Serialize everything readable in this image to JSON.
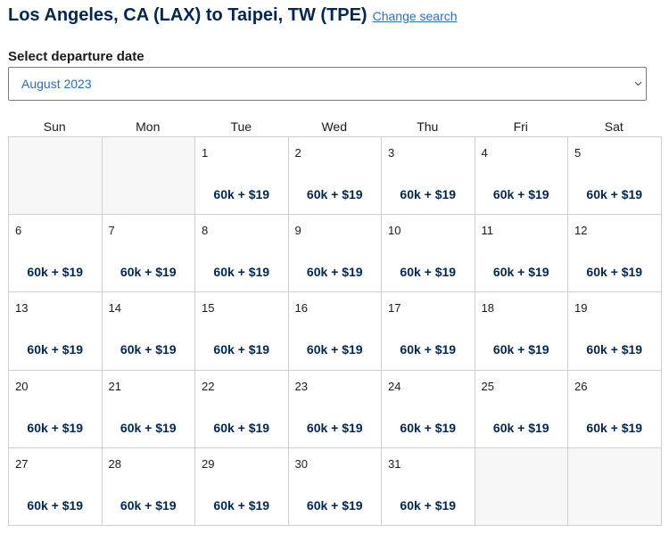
{
  "header": {
    "title": "Los Angeles, CA (LAX) to Taipei, TW (TPE)",
    "change_link": "Change search"
  },
  "date_select": {
    "label": "Select departure date",
    "value": "August 2023",
    "icon": "chevron-down-icon"
  },
  "calendar": {
    "weekdays": [
      "Sun",
      "Mon",
      "Tue",
      "Wed",
      "Thu",
      "Fri",
      "Sat"
    ],
    "leading_blanks": 2,
    "trailing_blanks": 2,
    "days": [
      {
        "day": "1",
        "price": "60k + $19"
      },
      {
        "day": "2",
        "price": "60k + $19"
      },
      {
        "day": "3",
        "price": "60k + $19"
      },
      {
        "day": "4",
        "price": "60k + $19"
      },
      {
        "day": "5",
        "price": "60k + $19"
      },
      {
        "day": "6",
        "price": "60k + $19"
      },
      {
        "day": "7",
        "price": "60k + $19"
      },
      {
        "day": "8",
        "price": "60k + $19"
      },
      {
        "day": "9",
        "price": "60k + $19"
      },
      {
        "day": "10",
        "price": "60k + $19"
      },
      {
        "day": "11",
        "price": "60k + $19"
      },
      {
        "day": "12",
        "price": "60k + $19"
      },
      {
        "day": "13",
        "price": "60k + $19"
      },
      {
        "day": "14",
        "price": "60k + $19"
      },
      {
        "day": "15",
        "price": "60k + $19"
      },
      {
        "day": "16",
        "price": "60k + $19"
      },
      {
        "day": "17",
        "price": "60k + $19"
      },
      {
        "day": "18",
        "price": "60k + $19"
      },
      {
        "day": "19",
        "price": "60k + $19"
      },
      {
        "day": "20",
        "price": "60k + $19"
      },
      {
        "day": "21",
        "price": "60k + $19"
      },
      {
        "day": "22",
        "price": "60k + $19"
      },
      {
        "day": "23",
        "price": "60k + $19"
      },
      {
        "day": "24",
        "price": "60k + $19"
      },
      {
        "day": "25",
        "price": "60k + $19"
      },
      {
        "day": "26",
        "price": "60k + $19"
      },
      {
        "day": "27",
        "price": "60k + $19"
      },
      {
        "day": "28",
        "price": "60k + $19"
      },
      {
        "day": "29",
        "price": "60k + $19"
      },
      {
        "day": "30",
        "price": "60k + $19"
      },
      {
        "day": "31",
        "price": "60k + $19"
      }
    ]
  },
  "colors": {
    "title": "#01264f",
    "link": "#2a6ebb",
    "price": "#01264f",
    "grid_border": "#cfcfcf",
    "empty_cell": "#f7f7f7"
  }
}
